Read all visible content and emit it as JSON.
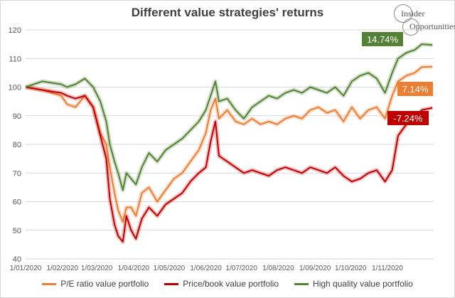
{
  "chart_data": {
    "type": "line",
    "title": "Different value strategies' returns",
    "xlabel": "",
    "ylabel": "",
    "ylim": [
      40,
      120
    ],
    "yticks": [
      "40",
      "50",
      "60",
      "70",
      "80",
      "90",
      "100",
      "110",
      "120"
    ],
    "xticks": [
      "1/01/2020",
      "1/02/2020",
      "1/03/2020",
      "1/04/2020",
      "1/05/2020",
      "1/06/2020",
      "1/07/2020",
      "1/08/2020",
      "1/09/2020",
      "1/10/2020",
      "1/11/2020"
    ],
    "grid": true,
    "legend_position": "bottom",
    "series": [
      {
        "name": "P/E ratio value portfolio",
        "color": "#ed7d31",
        "end_label": "7.14%",
        "points": [
          [
            "2020-01-01",
            100
          ],
          [
            "2020-01-15",
            99
          ],
          [
            "2020-01-31",
            97
          ],
          [
            "2020-02-05",
            94
          ],
          [
            "2020-02-12",
            93
          ],
          [
            "2020-02-20",
            97
          ],
          [
            "2020-02-27",
            93
          ],
          [
            "2020-03-04",
            84
          ],
          [
            "2020-03-09",
            80
          ],
          [
            "2020-03-12",
            72
          ],
          [
            "2020-03-16",
            63
          ],
          [
            "2020-03-19",
            57
          ],
          [
            "2020-03-23",
            53
          ],
          [
            "2020-03-26",
            58
          ],
          [
            "2020-03-30",
            58
          ],
          [
            "2020-04-03",
            55
          ],
          [
            "2020-04-08",
            63
          ],
          [
            "2020-04-14",
            65
          ],
          [
            "2020-04-21",
            60
          ],
          [
            "2020-04-28",
            64
          ],
          [
            "2020-05-05",
            68
          ],
          [
            "2020-05-12",
            70
          ],
          [
            "2020-05-19",
            74
          ],
          [
            "2020-05-26",
            78
          ],
          [
            "2020-06-01",
            84
          ],
          [
            "2020-06-05",
            92
          ],
          [
            "2020-06-09",
            96
          ],
          [
            "2020-06-12",
            89
          ],
          [
            "2020-06-19",
            92
          ],
          [
            "2020-06-26",
            88
          ],
          [
            "2020-07-03",
            87
          ],
          [
            "2020-07-10",
            89
          ],
          [
            "2020-07-17",
            87
          ],
          [
            "2020-07-24",
            88
          ],
          [
            "2020-07-31",
            87
          ],
          [
            "2020-08-07",
            89
          ],
          [
            "2020-08-14",
            90
          ],
          [
            "2020-08-21",
            89
          ],
          [
            "2020-08-28",
            92
          ],
          [
            "2020-09-04",
            93
          ],
          [
            "2020-09-11",
            91
          ],
          [
            "2020-09-18",
            92
          ],
          [
            "2020-09-25",
            88
          ],
          [
            "2020-10-02",
            93
          ],
          [
            "2020-10-09",
            89
          ],
          [
            "2020-10-16",
            92
          ],
          [
            "2020-10-23",
            93
          ],
          [
            "2020-10-30",
            89
          ],
          [
            "2020-11-05",
            97
          ],
          [
            "2020-11-10",
            102
          ],
          [
            "2020-11-17",
            104
          ],
          [
            "2020-11-24",
            105
          ],
          [
            "2020-11-30",
            107
          ],
          [
            "2020-12-09",
            107.14
          ]
        ]
      },
      {
        "name": "Price/book value portfolio",
        "color": "#c00000",
        "end_label": "-7.24%",
        "points": [
          [
            "2020-01-01",
            100
          ],
          [
            "2020-01-15",
            99
          ],
          [
            "2020-01-31",
            98
          ],
          [
            "2020-02-05",
            97
          ],
          [
            "2020-02-12",
            96
          ],
          [
            "2020-02-20",
            97
          ],
          [
            "2020-02-27",
            93
          ],
          [
            "2020-03-04",
            83
          ],
          [
            "2020-03-09",
            75
          ],
          [
            "2020-03-12",
            61
          ],
          [
            "2020-03-16",
            52
          ],
          [
            "2020-03-19",
            48
          ],
          [
            "2020-03-23",
            46
          ],
          [
            "2020-03-26",
            55
          ],
          [
            "2020-03-30",
            50
          ],
          [
            "2020-04-03",
            47
          ],
          [
            "2020-04-08",
            54
          ],
          [
            "2020-04-14",
            58
          ],
          [
            "2020-04-21",
            55
          ],
          [
            "2020-04-28",
            59
          ],
          [
            "2020-05-05",
            61
          ],
          [
            "2020-05-12",
            63
          ],
          [
            "2020-05-19",
            67
          ],
          [
            "2020-05-26",
            70
          ],
          [
            "2020-06-01",
            72
          ],
          [
            "2020-06-05",
            81
          ],
          [
            "2020-06-09",
            88
          ],
          [
            "2020-06-12",
            76
          ],
          [
            "2020-06-19",
            74
          ],
          [
            "2020-06-26",
            72
          ],
          [
            "2020-07-03",
            70
          ],
          [
            "2020-07-10",
            71
          ],
          [
            "2020-07-17",
            70
          ],
          [
            "2020-07-24",
            69
          ],
          [
            "2020-07-31",
            71
          ],
          [
            "2020-08-07",
            72
          ],
          [
            "2020-08-14",
            71
          ],
          [
            "2020-08-21",
            70
          ],
          [
            "2020-08-28",
            72
          ],
          [
            "2020-09-04",
            71
          ],
          [
            "2020-09-11",
            70
          ],
          [
            "2020-09-18",
            72
          ],
          [
            "2020-09-25",
            69
          ],
          [
            "2020-10-02",
            67
          ],
          [
            "2020-10-09",
            68
          ],
          [
            "2020-10-16",
            70
          ],
          [
            "2020-10-23",
            71
          ],
          [
            "2020-10-30",
            67
          ],
          [
            "2020-11-05",
            71
          ],
          [
            "2020-11-10",
            83
          ],
          [
            "2020-11-17",
            87
          ],
          [
            "2020-11-24",
            89
          ],
          [
            "2020-11-30",
            92
          ],
          [
            "2020-12-09",
            92.76
          ]
        ]
      },
      {
        "name": "High quality value portfolio",
        "color": "#548235",
        "end_label": "14.74%",
        "points": [
          [
            "2020-01-01",
            100
          ],
          [
            "2020-01-15",
            102
          ],
          [
            "2020-01-31",
            101
          ],
          [
            "2020-02-05",
            100
          ],
          [
            "2020-02-12",
            101
          ],
          [
            "2020-02-20",
            103
          ],
          [
            "2020-02-27",
            100
          ],
          [
            "2020-03-04",
            95
          ],
          [
            "2020-03-09",
            88
          ],
          [
            "2020-03-12",
            80
          ],
          [
            "2020-03-16",
            74
          ],
          [
            "2020-03-19",
            70
          ],
          [
            "2020-03-23",
            64
          ],
          [
            "2020-03-26",
            70
          ],
          [
            "2020-03-30",
            68
          ],
          [
            "2020-04-03",
            66
          ],
          [
            "2020-04-08",
            72
          ],
          [
            "2020-04-14",
            77
          ],
          [
            "2020-04-21",
            74
          ],
          [
            "2020-04-28",
            78
          ],
          [
            "2020-05-05",
            80
          ],
          [
            "2020-05-12",
            82
          ],
          [
            "2020-05-19",
            85
          ],
          [
            "2020-05-26",
            88
          ],
          [
            "2020-06-01",
            92
          ],
          [
            "2020-06-05",
            97
          ],
          [
            "2020-06-09",
            102
          ],
          [
            "2020-06-12",
            95
          ],
          [
            "2020-06-19",
            96
          ],
          [
            "2020-06-26",
            92
          ],
          [
            "2020-07-03",
            89
          ],
          [
            "2020-07-10",
            93
          ],
          [
            "2020-07-17",
            95
          ],
          [
            "2020-07-24",
            97
          ],
          [
            "2020-07-31",
            96
          ],
          [
            "2020-08-07",
            98
          ],
          [
            "2020-08-14",
            99
          ],
          [
            "2020-08-21",
            98
          ],
          [
            "2020-08-28",
            100
          ],
          [
            "2020-09-04",
            99
          ],
          [
            "2020-09-11",
            98
          ],
          [
            "2020-09-18",
            100
          ],
          [
            "2020-09-25",
            97
          ],
          [
            "2020-10-02",
            102
          ],
          [
            "2020-10-09",
            104
          ],
          [
            "2020-10-16",
            105
          ],
          [
            "2020-10-23",
            103
          ],
          [
            "2020-10-30",
            98
          ],
          [
            "2020-11-05",
            105
          ],
          [
            "2020-11-10",
            110
          ],
          [
            "2020-11-17",
            112
          ],
          [
            "2020-11-24",
            113
          ],
          [
            "2020-11-30",
            115
          ],
          [
            "2020-12-09",
            114.74
          ]
        ]
      }
    ]
  },
  "branding": {
    "line1": "Insider",
    "line2": "Opportunities"
  }
}
